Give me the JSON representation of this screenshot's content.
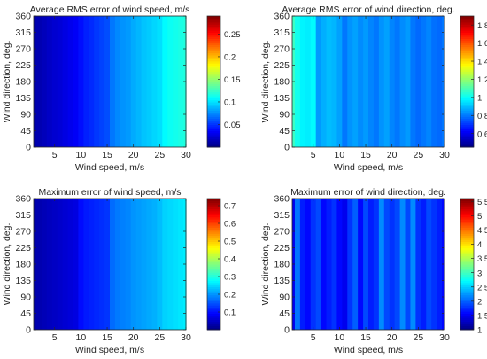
{
  "chart_data": [
    {
      "type": "heatmap",
      "title": "Average RMS error of wind speed, m/s",
      "xlabel": "Wind speed, m/s",
      "ylabel": "Wind direction, deg.",
      "xlim": [
        1,
        30
      ],
      "ylim": [
        0,
        360
      ],
      "xticks": [
        5,
        10,
        15,
        20,
        25,
        30
      ],
      "yticks": [
        0,
        45,
        90,
        135,
        180,
        225,
        270,
        315,
        360
      ],
      "colormap": "jet",
      "clim": [
        0,
        0.29
      ],
      "colorbar_ticks": [
        0.05,
        0.1,
        0.15,
        0.2,
        0.25
      ],
      "x": [
        1,
        2,
        3,
        4,
        5,
        6,
        7,
        8,
        9,
        10,
        11,
        12,
        13,
        14,
        15,
        16,
        17,
        18,
        19,
        20,
        21,
        22,
        23,
        24,
        25,
        26,
        27,
        28,
        29,
        30
      ],
      "values_by_x": [
        0.012,
        0.014,
        0.017,
        0.02,
        0.023,
        0.025,
        0.028,
        0.031,
        0.034,
        0.04,
        0.045,
        0.048,
        0.052,
        0.055,
        0.058,
        0.07,
        0.075,
        0.078,
        0.08,
        0.085,
        0.088,
        0.092,
        0.094,
        0.097,
        0.1,
        0.108,
        0.112,
        0.114,
        0.116,
        0.118
      ]
    },
    {
      "type": "heatmap",
      "title": "Average RMS error of wind direction, deg.",
      "xlabel": "Wind speed, m/s",
      "ylabel": "Wind direction, deg.",
      "xlim": [
        1,
        30
      ],
      "ylim": [
        0,
        360
      ],
      "xticks": [
        5,
        10,
        15,
        20,
        25,
        30
      ],
      "yticks": [
        0,
        45,
        90,
        135,
        180,
        225,
        270,
        315,
        360
      ],
      "colormap": "jet",
      "clim": [
        0.45,
        1.9
      ],
      "colorbar_ticks": [
        0.6,
        0.8,
        1,
        1.2,
        1.4,
        1.6,
        1.8
      ],
      "x": [
        1,
        2,
        3,
        4,
        5,
        6,
        7,
        8,
        9,
        10,
        11,
        12,
        13,
        14,
        15,
        16,
        17,
        18,
        19,
        20,
        21,
        22,
        23,
        24,
        25,
        26,
        27,
        28,
        29,
        30
      ],
      "values_by_x": [
        1.08,
        1.02,
        0.98,
        0.97,
        0.99,
        0.85,
        0.88,
        0.9,
        0.89,
        0.86,
        0.8,
        0.84,
        0.86,
        0.83,
        0.85,
        0.82,
        0.8,
        0.84,
        0.86,
        0.82,
        0.8,
        0.83,
        0.85,
        0.8,
        0.78,
        0.8,
        0.82,
        0.79,
        0.78,
        0.8
      ]
    },
    {
      "type": "heatmap",
      "title": "Maximum error of wind speed, m/s",
      "xlabel": "Wind speed, m/s",
      "ylabel": "Wind direction, deg.",
      "xlim": [
        1,
        30
      ],
      "ylim": [
        0,
        360
      ],
      "xticks": [
        5,
        10,
        15,
        20,
        25,
        30
      ],
      "yticks": [
        0,
        45,
        90,
        135,
        180,
        225,
        270,
        315,
        360
      ],
      "colormap": "jet",
      "clim": [
        0,
        0.74
      ],
      "colorbar_ticks": [
        0.1,
        0.2,
        0.3,
        0.4,
        0.5,
        0.6,
        0.7
      ],
      "x": [
        1,
        2,
        3,
        4,
        5,
        6,
        7,
        8,
        9,
        10,
        11,
        12,
        13,
        14,
        15,
        16,
        17,
        18,
        19,
        20,
        21,
        22,
        23,
        24,
        25,
        26,
        27,
        28,
        29,
        30
      ],
      "values_by_x": [
        0.03,
        0.035,
        0.04,
        0.045,
        0.05,
        0.055,
        0.06,
        0.065,
        0.07,
        0.1,
        0.11,
        0.115,
        0.12,
        0.125,
        0.13,
        0.17,
        0.18,
        0.185,
        0.19,
        0.2,
        0.205,
        0.21,
        0.215,
        0.22,
        0.23,
        0.245,
        0.25,
        0.255,
        0.26,
        0.265
      ]
    },
    {
      "type": "heatmap",
      "title": "Maximum error of wind direction, deg.",
      "xlabel": "Wind speed, m/s",
      "ylabel": "Wind direction, deg.",
      "xlim": [
        1,
        30
      ],
      "ylim": [
        0,
        360
      ],
      "xticks": [
        5,
        10,
        15,
        20,
        25,
        30
      ],
      "yticks": [
        0,
        45,
        90,
        135,
        180,
        225,
        270,
        315,
        360
      ],
      "colormap": "jet",
      "clim": [
        1,
        5.6
      ],
      "colorbar_ticks": [
        1,
        1.5,
        2,
        2.5,
        3,
        3.5,
        4,
        4.5,
        5,
        5.5
      ],
      "x": [
        1,
        2,
        3,
        4,
        5,
        6,
        7,
        8,
        9,
        10,
        11,
        12,
        13,
        14,
        15,
        16,
        17,
        18,
        19,
        20,
        21,
        22,
        23,
        24,
        25,
        26,
        27,
        28,
        29,
        30
      ],
      "values_by_x": [
        1.5,
        2.1,
        1.7,
        1.6,
        1.8,
        1.9,
        1.6,
        1.7,
        1.8,
        1.6,
        1.5,
        1.8,
        2.0,
        1.6,
        1.9,
        1.7,
        1.8,
        2.2,
        1.9,
        1.8,
        1.9,
        2.2,
        1.9,
        2.2,
        1.8,
        1.7,
        1.9,
        1.8,
        1.7,
        1.6
      ]
    }
  ]
}
